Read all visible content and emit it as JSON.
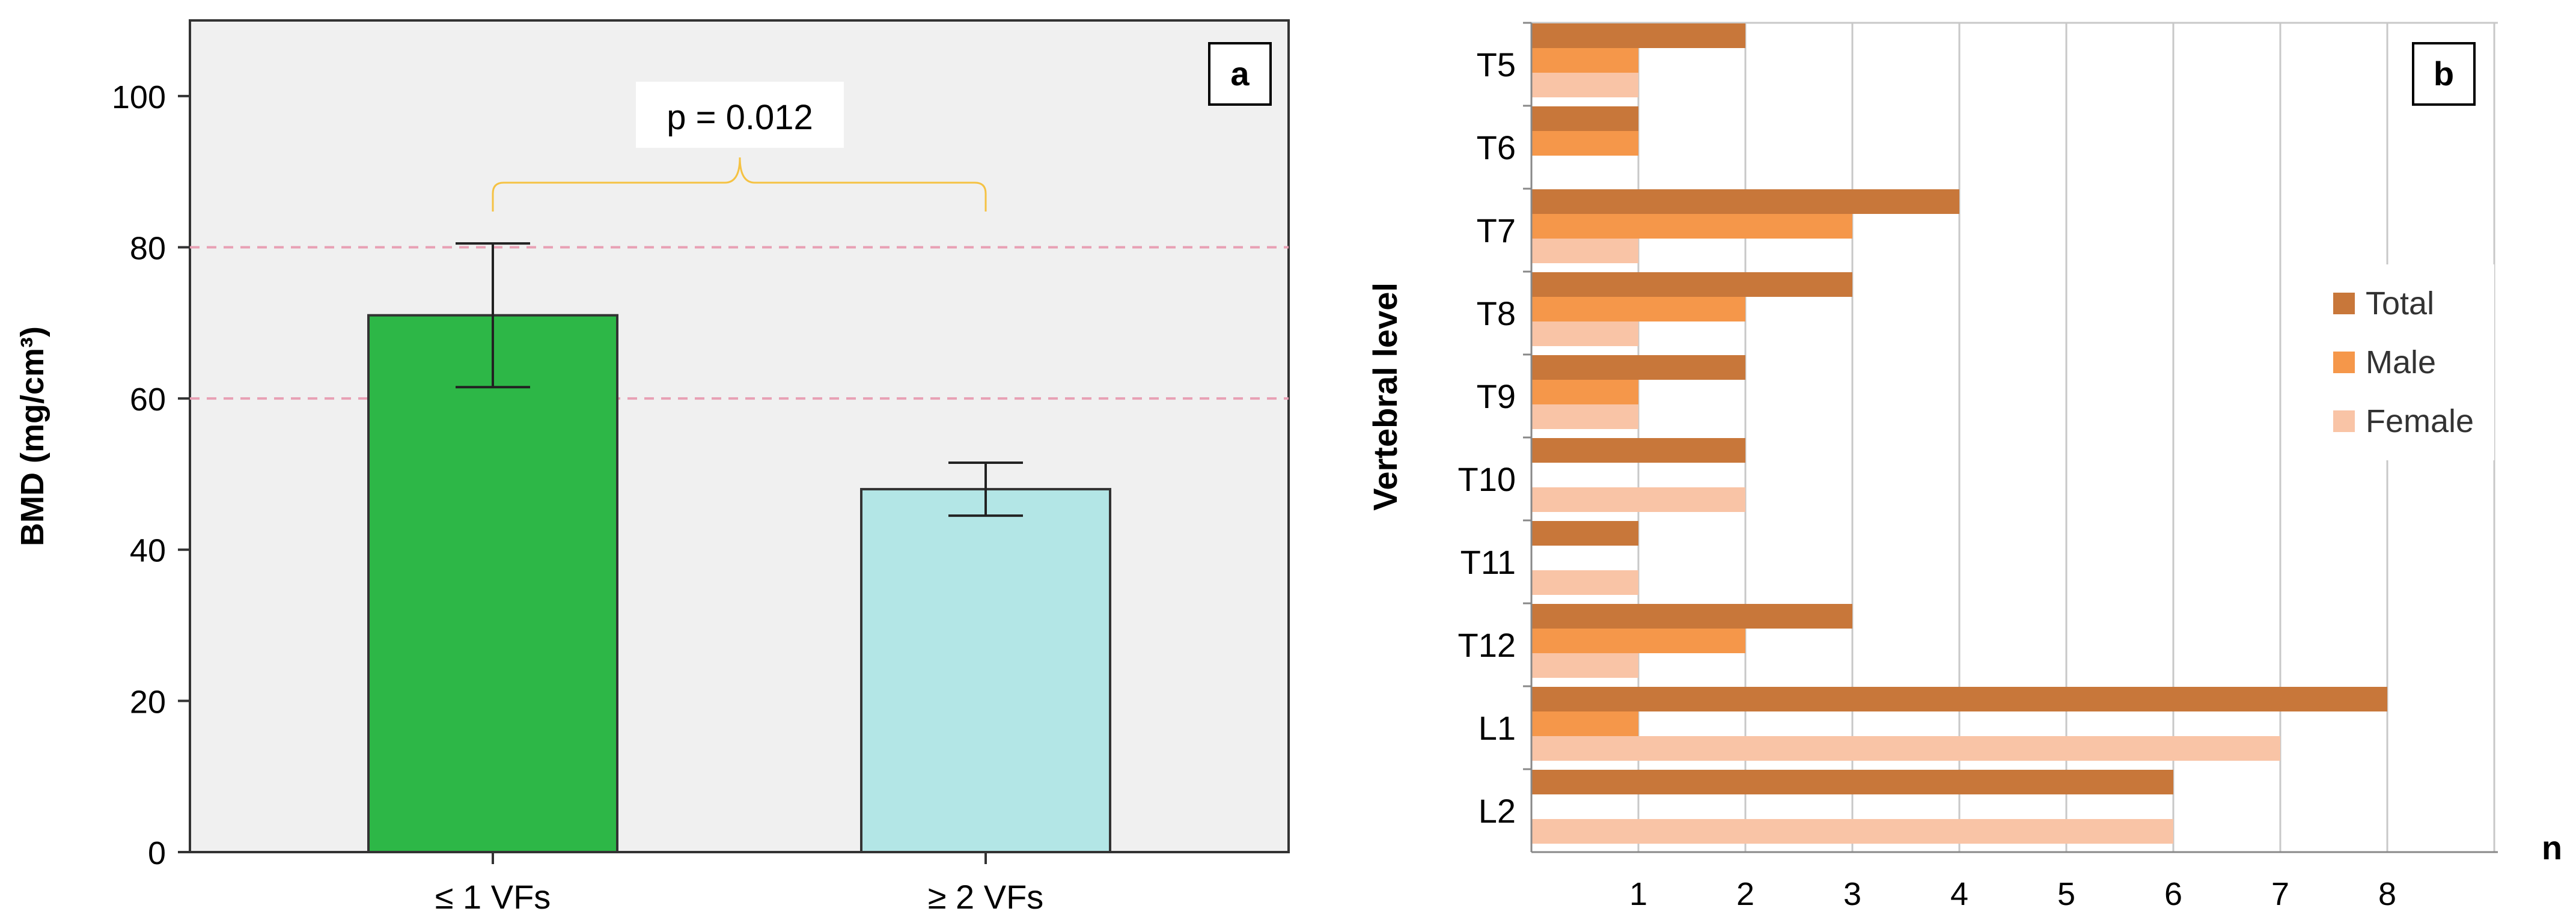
{
  "chart_data": [
    {
      "panel": "a",
      "type": "bar",
      "ylabel": "BMD (mg/cm³)",
      "ylim": [
        0,
        110
      ],
      "yticks": [
        "0",
        "20",
        "40",
        "60",
        "80",
        "100"
      ],
      "categories": [
        "≤ 1 VFs",
        "≥ 2 VFs"
      ],
      "values": [
        71,
        48
      ],
      "errors_upper": [
        80.5,
        51.5
      ],
      "errors_lower": [
        61.5,
        44.5
      ],
      "bar_colors": [
        "#2db747",
        "#b3e6e6"
      ],
      "reference_lines": [
        60,
        80
      ],
      "reference_line_color": "#e8a0b4",
      "annotation": "p = 0.012",
      "bracket_color": "#f5c243",
      "background": "#f0f0f0",
      "grid": false
    },
    {
      "panel": "b",
      "type": "bar",
      "orientation": "horizontal",
      "ylabel": "Vertebral level",
      "xlabel": "n",
      "xlim": [
        0,
        9
      ],
      "xticks": [
        "1",
        "2",
        "3",
        "4",
        "5",
        "6",
        "7",
        "8"
      ],
      "categories": [
        "T5",
        "T6",
        "T7",
        "T8",
        "T9",
        "T10",
        "T11",
        "T12",
        "L1",
        "L2"
      ],
      "series": [
        {
          "name": "Total",
          "color": "#c8773a",
          "values": [
            2,
            1,
            4,
            3,
            2,
            2,
            1,
            3,
            8,
            6
          ]
        },
        {
          "name": "Male",
          "color": "#f5974a",
          "values": [
            1,
            1,
            3,
            2,
            1,
            0,
            0,
            2,
            1,
            0
          ]
        },
        {
          "name": "Female",
          "color": "#f9c4a6",
          "values": [
            1,
            0,
            1,
            1,
            1,
            2,
            1,
            1,
            7,
            6
          ]
        }
      ],
      "legend_position": "right",
      "grid": true
    }
  ]
}
